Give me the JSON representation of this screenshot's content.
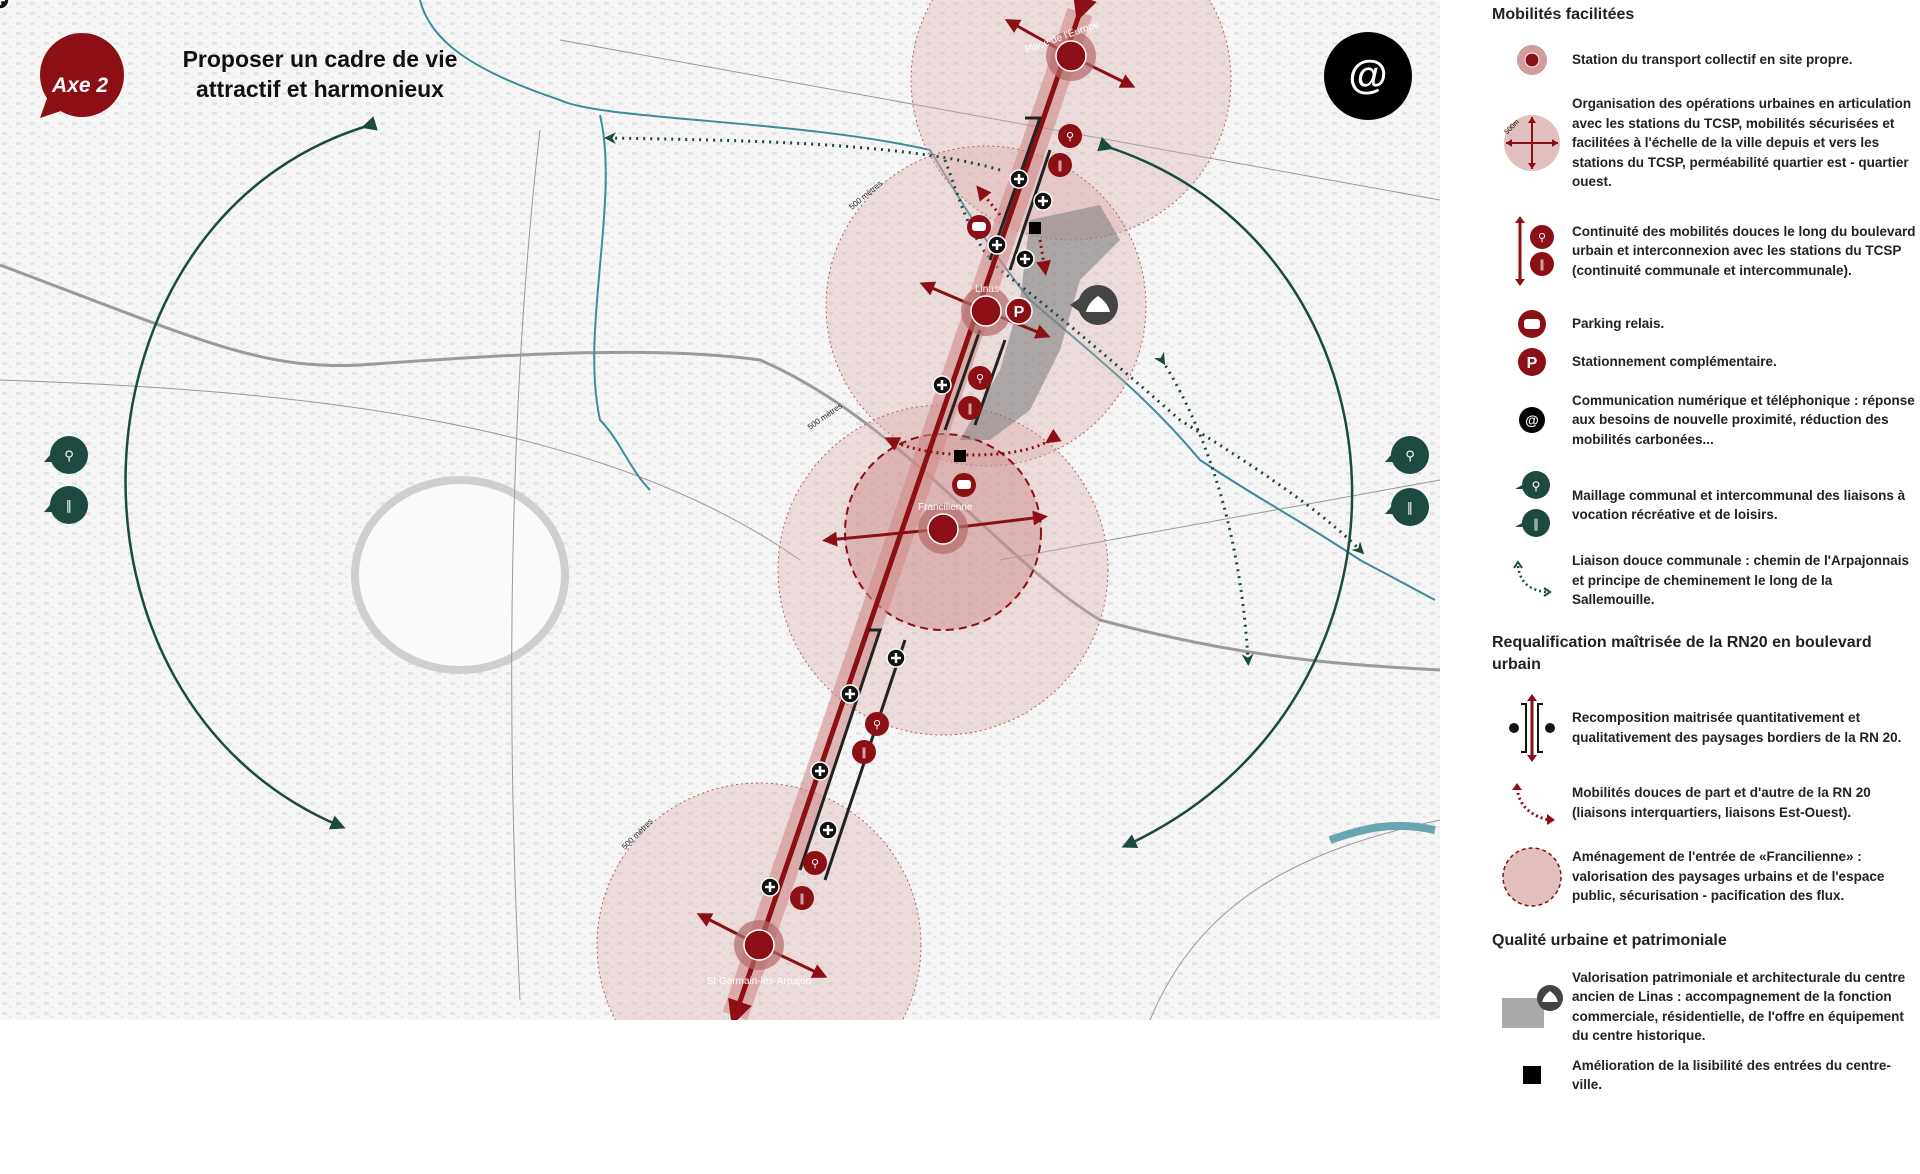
{
  "map": {
    "axis_badge": "Axe 2",
    "title_line1": "Proposer un cadre de vie",
    "title_line2": "attractif et harmonieux",
    "at_symbol": "@",
    "stations": [
      "Place de l'Europe",
      "Linas",
      "Francilienne",
      "St Germain-lès-Arpajon"
    ],
    "radius_label": "500 mètres",
    "colors": {
      "accent": "#8b0f14",
      "green": "#1d4a40",
      "pink": "#e7c3c3",
      "river": "#3c8b98"
    }
  },
  "legend": {
    "section1": {
      "title": "Mobilités facilitées",
      "items": [
        {
          "icon": "station-icon",
          "text": "Station du transport collectif en site propre."
        },
        {
          "icon": "radius-cross-icon",
          "icon_label": "500m",
          "text": "Organisation des opérations urbaines en articulation avec les stations du TCSP, mobilités sécurisées et facilitées à l'échelle de la ville depuis et vers les stations du TCSP, perméabilité quartier est - quartier ouest."
        },
        {
          "icon": "bike-walk-axis-icon",
          "text": "Continuité des mobilités douces le long du boulevard urbain et interconnexion avec les stations du TCSP (continuité communale et intercommunale)."
        },
        {
          "icon": "car-icon",
          "text": "Parking relais."
        },
        {
          "icon": "parking-icon",
          "icon_label": "P",
          "text": "Stationnement complémentaire."
        },
        {
          "icon": "at-icon",
          "icon_label": "@",
          "text": "Communication numérique et téléphonique : réponse aux besoins de nouvelle proximité, réduction des mobilités carbonées..."
        },
        {
          "icon": "bike-walk-bubble-icon",
          "text": "Maillage communal et intercommunal des liaisons à vocation récréative et de loisirs."
        },
        {
          "icon": "green-dotted-arrow-icon",
          "text": "Liaison douce communale : chemin de l'Arpajonnais et principe de cheminement le long de la Sallemouille."
        }
      ]
    },
    "section2": {
      "title": "Requalification maîtrisée de la RN20 en boulevard urbain",
      "items": [
        {
          "icon": "boulevard-plus-icon",
          "text": "Recomposition maitrisée quantitativement et qualitativement des paysages bordiers de la RN 20."
        },
        {
          "icon": "red-dotted-arrow-icon",
          "text": "Mobilités douces de part et d'autre de la RN 20 (liaisons interquartiers, liaisons Est-Ouest)."
        },
        {
          "icon": "dashed-circle-icon",
          "text": "Aménagement de l'entrée de «Francilienne» : valorisation des paysages urbains et de l'espace public, sécurisation - pacification des flux."
        }
      ]
    },
    "section3": {
      "title": "Qualité urbaine et patrimoniale",
      "items": [
        {
          "icon": "heritage-area-icon",
          "text": "Valorisation patrimoniale et architecturale du centre ancien de Linas : accompagnement de la fonction commerciale, résidentielle, de l'offre en équipement du centre historique."
        },
        {
          "icon": "black-square-icon",
          "text": "Amélioration de la lisibilité des entrées du centre-ville."
        }
      ]
    }
  }
}
